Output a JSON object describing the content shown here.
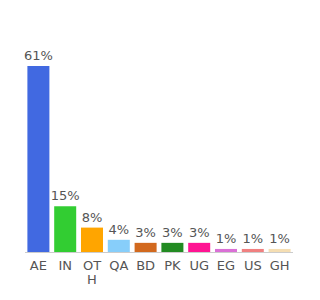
{
  "chart_data": {
    "type": "bar",
    "categories": [
      "AE",
      "IN",
      "OTH",
      "QA",
      "BD",
      "PK",
      "UG",
      "EG",
      "US",
      "GH"
    ],
    "values": [
      61,
      15,
      8,
      4,
      3,
      3,
      3,
      1,
      1,
      1
    ],
    "value_labels": [
      "61%",
      "15%",
      "8%",
      "4%",
      "3%",
      "3%",
      "3%",
      "1%",
      "1%",
      "1%"
    ],
    "colors": [
      "#4169e1",
      "#32cd32",
      "#ffa500",
      "#87cefa",
      "#d2691e",
      "#228b22",
      "#ff1493",
      "#da70d6",
      "#f08080",
      "#f5deb3"
    ],
    "data_labels": true,
    "tick_labels": "x",
    "grid": false
  }
}
